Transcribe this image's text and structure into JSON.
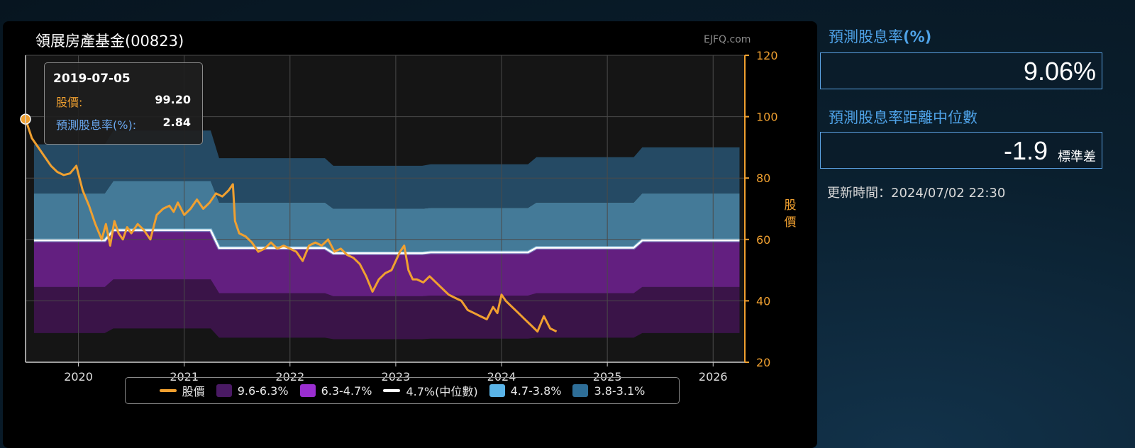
{
  "header": {
    "title": "領展房產基金(00823)",
    "watermark": "EJFQ.com"
  },
  "tooltip": {
    "date": "2019-07-05",
    "price_label": "股價:",
    "price_value": "99.20",
    "yield_label": "預測股息率(%):",
    "yield_value": "2.84"
  },
  "side": {
    "yield_label": "預測股息率",
    "yield_unit": "(%)",
    "yield_value": "9.06%",
    "dist_label": "預測股息率距離中位數",
    "dist_value": "-1.9",
    "dist_unit": "標準差",
    "update_label": "更新時間：",
    "update_value": "2024/07/02 22:30"
  },
  "colors": {
    "price": "#f0a030",
    "band_9_6_6_3": "#3a1448",
    "band_6_3_4_7": "#631f80",
    "median": "#ffffff",
    "band_4_7_3_8": "#447a98",
    "band_3_8_3_1": "#254a64",
    "outside": "#121212",
    "yield_label": "#4fa3e8"
  },
  "legend": [
    {
      "name": "股價",
      "kind": "line",
      "color": "#f0a030"
    },
    {
      "name": "9.6-6.3%",
      "kind": "box",
      "color": "#4a1a64"
    },
    {
      "name": "6.3-4.7%",
      "kind": "box",
      "color": "#9a2ed0"
    },
    {
      "name": "4.7%(中位數)",
      "kind": "line",
      "color": "#ffffff"
    },
    {
      "name": "4.7-3.8%",
      "kind": "box",
      "color": "#5ab4e8"
    },
    {
      "name": "3.8-3.1%",
      "kind": "box",
      "color": "#2e6e98"
    }
  ],
  "chart_data": {
    "type": "area",
    "ylabel": "股價",
    "ylim": [
      20,
      120
    ],
    "y_ticks": [
      20,
      40,
      60,
      80,
      100,
      120
    ],
    "x_ticks": [
      "2020",
      "2021",
      "2022",
      "2023",
      "2024",
      "2025",
      "2026"
    ],
    "xlim": [
      2019.5,
      2026.3
    ],
    "grid": true,
    "legend_position": "bottom",
    "bands": {
      "x": [
        2019.58,
        2020.25,
        2020.33,
        2021.25,
        2021.33,
        2022.33,
        2022.41,
        2023.25,
        2023.33,
        2024.25,
        2024.33,
        2025.25,
        2025.33,
        2026.25
      ],
      "y_9_6": [
        29.5,
        29.5,
        31,
        31,
        28,
        28,
        27.5,
        27.5,
        27.7,
        27.7,
        28,
        28,
        29.5,
        29.5
      ],
      "y_6_3": [
        44.5,
        44.5,
        47,
        47,
        42.5,
        42.5,
        41.5,
        41.5,
        41.7,
        41.7,
        42.5,
        42.5,
        44.5,
        44.5
      ],
      "y_4_7": [
        59.7,
        59.7,
        63,
        63,
        57.2,
        57.2,
        55.5,
        55.5,
        55.8,
        55.8,
        57.3,
        57.3,
        59.7,
        59.7
      ],
      "y_3_8": [
        75,
        75,
        79,
        79,
        72,
        72,
        70,
        70,
        70.3,
        70.3,
        72,
        72,
        75,
        75
      ],
      "y_3_1": [
        91,
        91,
        95.5,
        95.5,
        86.5,
        86.5,
        84,
        84,
        84.5,
        84.5,
        86.8,
        86.8,
        90,
        90
      ]
    },
    "price": {
      "x": [
        2019.5,
        2019.56,
        2019.62,
        2019.68,
        2019.74,
        2019.8,
        2019.86,
        2019.92,
        2019.98,
        2020.04,
        2020.1,
        2020.16,
        2020.22,
        2020.26,
        2020.3,
        2020.34,
        2020.38,
        2020.42,
        2020.46,
        2020.5,
        2020.56,
        2020.62,
        2020.68,
        2020.74,
        2020.8,
        2020.86,
        2020.9,
        2020.94,
        2021.0,
        2021.06,
        2021.12,
        2021.18,
        2021.24,
        2021.3,
        2021.36,
        2021.42,
        2021.46,
        2021.48,
        2021.52,
        2021.58,
        2021.64,
        2021.7,
        2021.76,
        2021.82,
        2021.88,
        2021.94,
        2022.0,
        2022.06,
        2022.12,
        2022.18,
        2022.24,
        2022.3,
        2022.36,
        2022.42,
        2022.48,
        2022.54,
        2022.6,
        2022.66,
        2022.72,
        2022.78,
        2022.84,
        2022.9,
        2022.96,
        2023.0,
        2023.04,
        2023.08,
        2023.12,
        2023.16,
        2023.2,
        2023.26,
        2023.32,
        2023.38,
        2023.44,
        2023.5,
        2023.56,
        2023.62,
        2023.68,
        2023.74,
        2023.8,
        2023.86,
        2023.92,
        2023.96,
        2024.0,
        2024.04,
        2024.1,
        2024.16,
        2024.22,
        2024.28,
        2024.34,
        2024.4,
        2024.46,
        2024.52
      ],
      "values": [
        99.2,
        93,
        90,
        87,
        84,
        82,
        81,
        81.5,
        84,
        76,
        71,
        65,
        60,
        65,
        58,
        66,
        62,
        60,
        64,
        62,
        65,
        63,
        60,
        68,
        70,
        71,
        69,
        72,
        68,
        70,
        73,
        70,
        72,
        75,
        74,
        76,
        78,
        66,
        62,
        61,
        59,
        56,
        57,
        59,
        57,
        58,
        57,
        56,
        53,
        58,
        59,
        58,
        60,
        56,
        57,
        55,
        54,
        52,
        48,
        43,
        47,
        49,
        50,
        53,
        56,
        58,
        50,
        47,
        47,
        46,
        48,
        46,
        44,
        42,
        41,
        40,
        37,
        36,
        35,
        34,
        38,
        36,
        42,
        40,
        38,
        36,
        34,
        32,
        30,
        35,
        31,
        30
      ]
    }
  }
}
